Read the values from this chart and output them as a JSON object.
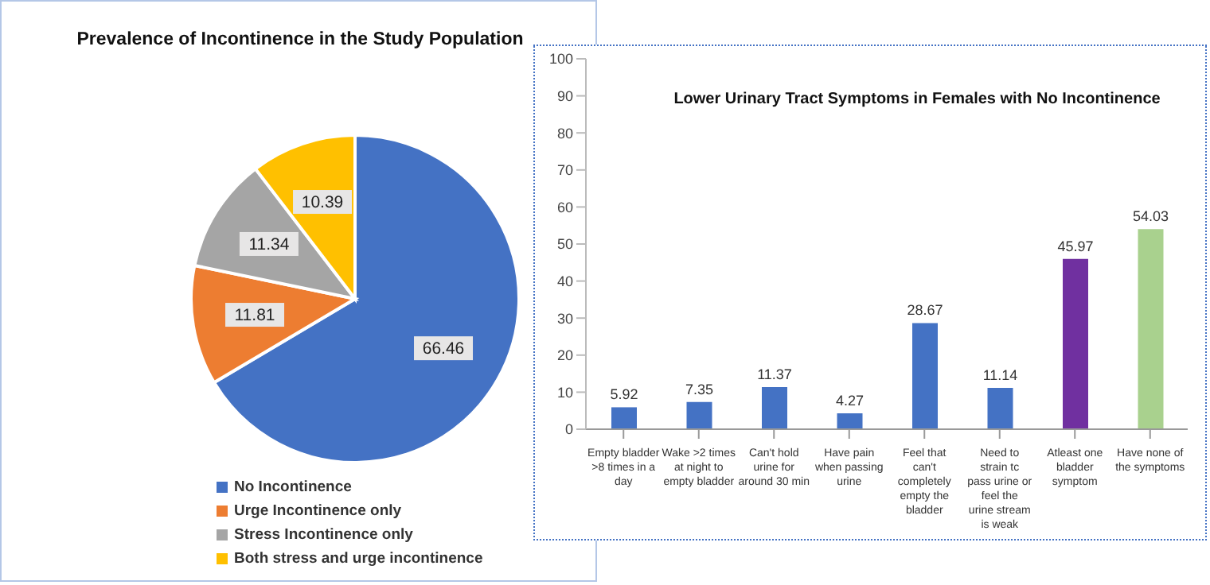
{
  "chart_data": [
    {
      "type": "pie",
      "title": "Prevalence of Incontinence in the Study Population",
      "categories": [
        "No Incontinence",
        "Urge Incontinence only",
        "Stress Incontinence only",
        "Both stress and urge incontinence"
      ],
      "values": [
        66.46,
        11.81,
        11.34,
        10.39
      ],
      "colors": [
        "#4472c4",
        "#ed7d31",
        "#a5a5a5",
        "#ffc000"
      ],
      "data_labels": true,
      "legend": "bottom"
    },
    {
      "type": "bar",
      "title": "Lower Urinary Tract Symptoms in Females with No Incontinence",
      "categories": [
        "Empty bladder >8 times in a day",
        "Wake >2 times at night to empty bladder",
        "Can't hold urine for around 30 min",
        "Have pain when passing urine",
        "Feel that can't completely empty the bladder",
        "Need to strain tc pass urine or feel the urine stream is weak",
        "Atleast one bladder symptom",
        "Have none of the symptoms"
      ],
      "values": [
        5.92,
        7.35,
        11.37,
        4.27,
        28.67,
        11.14,
        45.97,
        54.03
      ],
      "colors": [
        "#4472c4",
        "#4472c4",
        "#4472c4",
        "#4472c4",
        "#4472c4",
        "#4472c4",
        "#7030a0",
        "#a9d18e"
      ],
      "ylim": [
        0,
        100
      ],
      "yticks": [
        0,
        10,
        20,
        30,
        40,
        50,
        60,
        70,
        80,
        90,
        100
      ],
      "data_labels": true,
      "grid": false
    }
  ]
}
